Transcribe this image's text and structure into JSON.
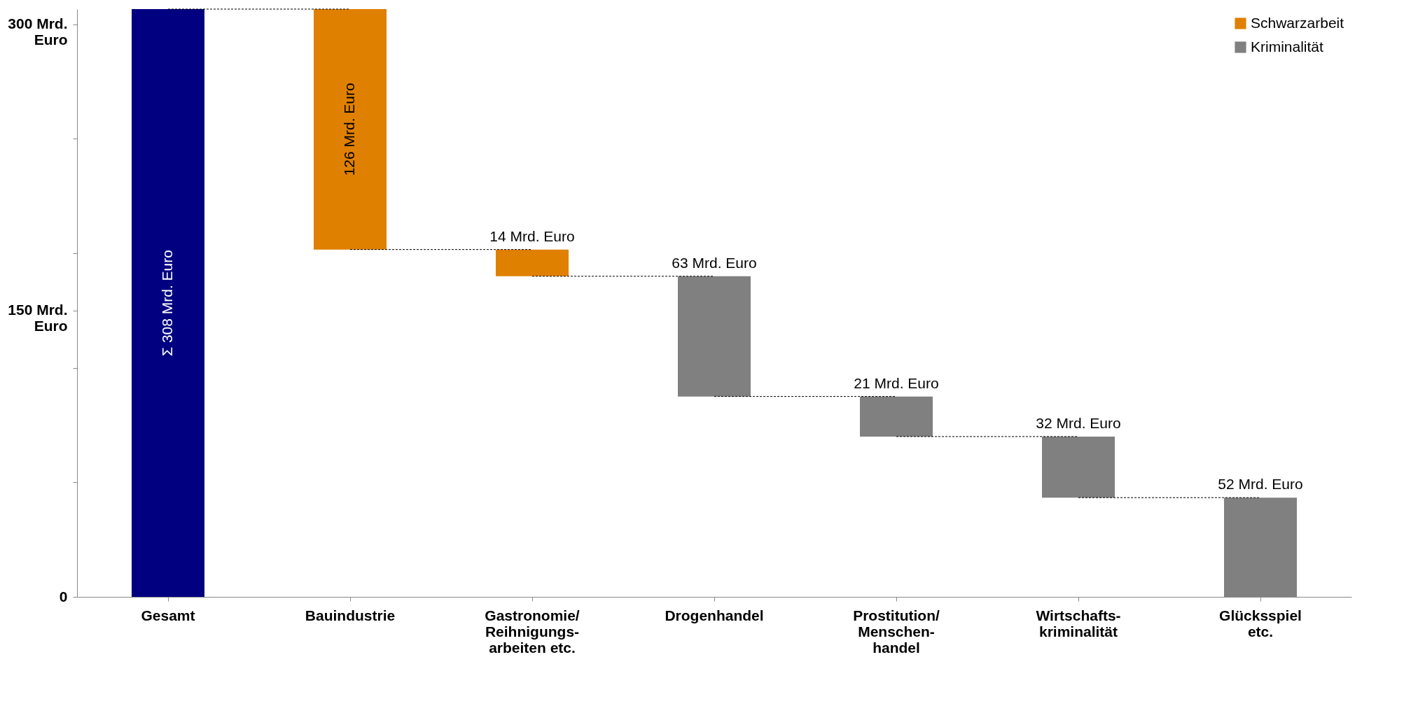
{
  "chart_data": {
    "type": "bar",
    "categories": [
      "Gesamt",
      "Bauindustrie",
      "Gastronomie/\nReihnigungs-\narbeiten etc.",
      "Drogenhandel",
      "Prostitution/\nMenschen-\nhandel",
      "Wirtschafts-\nkriminalität",
      "Glücksspiel\netc."
    ],
    "series": [
      {
        "color": "#000080",
        "base": [
          0,
          null,
          null,
          null,
          null,
          null,
          null
        ],
        "values": [
          308,
          null,
          null,
          null,
          null,
          null,
          null
        ],
        "value_labels": [
          "Σ  308 Mrd. Euro",
          null,
          null,
          null,
          null,
          null,
          null
        ]
      },
      {
        "name": "Schwarzarbeit",
        "color": "#e08000",
        "base": [
          null,
          182,
          168,
          null,
          null,
          null,
          null
        ],
        "values": [
          null,
          126,
          14,
          null,
          null,
          null,
          null
        ],
        "value_labels": [
          null,
          "126 Mrd. Euro",
          "14 Mrd. Euro",
          null,
          null,
          null,
          null
        ]
      },
      {
        "name": "Kriminalität",
        "color": "#808080",
        "base": [
          null,
          null,
          null,
          105,
          84,
          52,
          0
        ],
        "values": [
          null,
          null,
          null,
          63,
          21,
          32,
          52
        ],
        "value_labels": [
          null,
          null,
          null,
          "63 Mrd. Euro",
          "21 Mrd. Euro",
          "32 Mrd. Euro",
          "52 Mrd. Euro"
        ]
      }
    ],
    "ylim": [
      0,
      308
    ],
    "yticks": [
      {
        "value": 0,
        "label": "0"
      },
      {
        "value": 60,
        "label": null
      },
      {
        "value": 120,
        "label": null
      },
      {
        "value": 150,
        "label": "150 Mrd. Euro"
      },
      {
        "value": 180,
        "label": null
      },
      {
        "value": 240,
        "label": null
      },
      {
        "value": 300,
        "label": "300 Mrd. Euro"
      }
    ],
    "grid": false,
    "legend": "top right"
  }
}
